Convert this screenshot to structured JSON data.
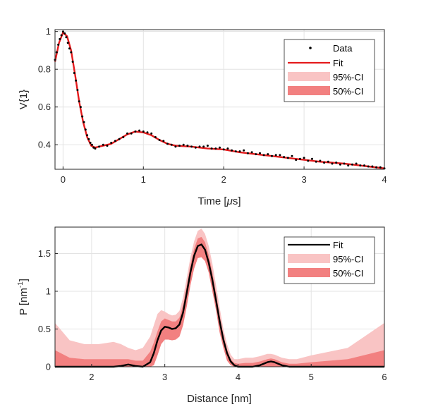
{
  "colors": {
    "fit_top": "#e41a1c",
    "fit_bottom": "#000000",
    "ci95": "#f9c4c4",
    "ci50": "#f28080",
    "data_points": "#000000",
    "grid": "#e3e3e3",
    "axis": "#262626"
  },
  "chart_data": [
    {
      "type": "scatter",
      "xlabel_prefix": "Time [",
      "xlabel_mu": "μ",
      "xlabel_suffix": "s]",
      "ylabel": "V{1}",
      "xlim": [
        -0.1,
        4
      ],
      "ylim": [
        0.27,
        1.01
      ],
      "xticks": [
        "0",
        "1",
        "2",
        "3",
        "4"
      ],
      "yticks": [
        "0.4",
        "0.6",
        "0.8",
        "1"
      ],
      "grid": true,
      "legend_position": "top-right",
      "legend": [
        "Data",
        "Fit",
        "95%-CI",
        "50%-CI"
      ],
      "fit": {
        "x": [
          -0.1,
          -0.05,
          0.0,
          0.05,
          0.1,
          0.15,
          0.2,
          0.25,
          0.3,
          0.35,
          0.4,
          0.5,
          0.6,
          0.7,
          0.8,
          0.9,
          1.0,
          1.1,
          1.2,
          1.3,
          1.4,
          1.6,
          1.8,
          2.0,
          2.2,
          2.5,
          2.8,
          3.0,
          3.2,
          3.5,
          3.8,
          4.0
        ],
        "y": [
          0.84,
          0.94,
          0.995,
          0.975,
          0.9,
          0.77,
          0.63,
          0.52,
          0.44,
          0.395,
          0.385,
          0.395,
          0.405,
          0.43,
          0.455,
          0.47,
          0.465,
          0.45,
          0.425,
          0.405,
          0.395,
          0.39,
          0.38,
          0.375,
          0.36,
          0.345,
          0.33,
          0.32,
          0.31,
          0.3,
          0.285,
          0.275
        ]
      },
      "data": {
        "x": [
          -0.1,
          -0.08,
          -0.06,
          -0.04,
          -0.02,
          0.0,
          0.02,
          0.04,
          0.06,
          0.08,
          0.1,
          0.12,
          0.14,
          0.16,
          0.18,
          0.2,
          0.22,
          0.24,
          0.26,
          0.28,
          0.3,
          0.32,
          0.34,
          0.36,
          0.38,
          0.4,
          0.45,
          0.5,
          0.55,
          0.6,
          0.65,
          0.7,
          0.75,
          0.8,
          0.85,
          0.9,
          0.95,
          1.0,
          1.05,
          1.1,
          1.15,
          1.2,
          1.25,
          1.3,
          1.35,
          1.4,
          1.45,
          1.5,
          1.55,
          1.6,
          1.65,
          1.7,
          1.75,
          1.8,
          1.85,
          1.9,
          1.95,
          2.0,
          2.05,
          2.1,
          2.15,
          2.2,
          2.25,
          2.3,
          2.35,
          2.4,
          2.45,
          2.5,
          2.55,
          2.6,
          2.65,
          2.7,
          2.75,
          2.8,
          2.85,
          2.9,
          2.95,
          3.0,
          3.05,
          3.1,
          3.15,
          3.2,
          3.25,
          3.3,
          3.35,
          3.4,
          3.45,
          3.5,
          3.55,
          3.6,
          3.65,
          3.7,
          3.75,
          3.8,
          3.85,
          3.9,
          3.95,
          4.0
        ],
        "y": [
          0.85,
          0.89,
          0.93,
          0.96,
          0.98,
          1.0,
          0.99,
          0.97,
          0.94,
          0.91,
          0.89,
          0.84,
          0.78,
          0.74,
          0.69,
          0.63,
          0.6,
          0.55,
          0.52,
          0.48,
          0.45,
          0.43,
          0.41,
          0.4,
          0.385,
          0.38,
          0.39,
          0.4,
          0.395,
          0.41,
          0.42,
          0.43,
          0.44,
          0.46,
          0.46,
          0.47,
          0.475,
          0.47,
          0.465,
          0.46,
          0.44,
          0.425,
          0.42,
          0.405,
          0.4,
          0.39,
          0.395,
          0.4,
          0.395,
          0.39,
          0.385,
          0.39,
          0.39,
          0.395,
          0.38,
          0.38,
          0.385,
          0.375,
          0.38,
          0.37,
          0.365,
          0.365,
          0.37,
          0.355,
          0.36,
          0.35,
          0.355,
          0.345,
          0.35,
          0.34,
          0.345,
          0.345,
          0.335,
          0.33,
          0.34,
          0.32,
          0.325,
          0.33,
          0.315,
          0.325,
          0.31,
          0.315,
          0.305,
          0.31,
          0.3,
          0.305,
          0.295,
          0.3,
          0.29,
          0.295,
          0.3,
          0.29,
          0.29,
          0.285,
          0.285,
          0.28,
          0.28,
          0.275
        ]
      }
    },
    {
      "type": "line",
      "xlabel": "Distance [nm]",
      "ylabel_main": "P [nm",
      "ylabel_sup": "-1",
      "ylabel_end": "]",
      "xlim": [
        1.5,
        6
      ],
      "ylim": [
        0,
        1.85
      ],
      "xticks": [
        "2",
        "3",
        "4",
        "5",
        "6"
      ],
      "yticks": [
        "0",
        "0.5",
        "1",
        "1.5"
      ],
      "grid": true,
      "legend_position": "top-right",
      "legend": [
        "Fit",
        "95%-CI",
        "50%-CI"
      ],
      "fit": {
        "x": [
          1.5,
          1.7,
          1.9,
          2.1,
          2.3,
          2.4,
          2.5,
          2.6,
          2.7,
          2.8,
          2.85,
          2.9,
          2.95,
          3.0,
          3.05,
          3.1,
          3.15,
          3.2,
          3.25,
          3.3,
          3.35,
          3.4,
          3.45,
          3.5,
          3.55,
          3.6,
          3.65,
          3.7,
          3.75,
          3.8,
          3.85,
          3.9,
          3.95,
          4.0,
          4.1,
          4.2,
          4.3,
          4.4,
          4.45,
          4.5,
          4.6,
          4.7,
          4.8,
          5.0,
          5.5,
          6.0
        ],
        "y": [
          0.0,
          0.0,
          0.0,
          0.0,
          0.0,
          0.01,
          0.03,
          0.01,
          0.0,
          0.06,
          0.18,
          0.35,
          0.48,
          0.53,
          0.52,
          0.5,
          0.51,
          0.56,
          0.72,
          0.98,
          1.25,
          1.47,
          1.6,
          1.62,
          1.55,
          1.38,
          1.15,
          0.88,
          0.6,
          0.36,
          0.18,
          0.07,
          0.02,
          0.0,
          0.0,
          0.0,
          0.02,
          0.06,
          0.07,
          0.06,
          0.02,
          0.0,
          0.0,
          0.0,
          0.0,
          0.0
        ]
      },
      "ci95_upper": [
        0.58,
        0.35,
        0.3,
        0.3,
        0.33,
        0.3,
        0.25,
        0.22,
        0.25,
        0.4,
        0.55,
        0.7,
        0.75,
        0.73,
        0.7,
        0.68,
        0.69,
        0.74,
        0.92,
        1.18,
        1.45,
        1.66,
        1.8,
        1.83,
        1.76,
        1.6,
        1.37,
        1.08,
        0.78,
        0.5,
        0.3,
        0.16,
        0.1,
        0.1,
        0.12,
        0.12,
        0.14,
        0.17,
        0.17,
        0.16,
        0.12,
        0.1,
        0.1,
        0.15,
        0.25,
        0.58
      ],
      "ci50_upper": [
        0.22,
        0.12,
        0.1,
        0.1,
        0.1,
        0.1,
        0.1,
        0.08,
        0.08,
        0.2,
        0.32,
        0.47,
        0.6,
        0.64,
        0.62,
        0.6,
        0.6,
        0.65,
        0.82,
        1.08,
        1.35,
        1.56,
        1.7,
        1.72,
        1.65,
        1.48,
        1.25,
        0.97,
        0.68,
        0.42,
        0.23,
        0.1,
        0.05,
        0.04,
        0.05,
        0.05,
        0.07,
        0.1,
        0.11,
        0.1,
        0.06,
        0.04,
        0.04,
        0.06,
        0.1,
        0.22
      ],
      "ci_lower": [
        0.0,
        0.0,
        0.0,
        0.0,
        0.0,
        0.0,
        0.0,
        0.0,
        0.0,
        0.0,
        0.02,
        0.15,
        0.3,
        0.36,
        0.36,
        0.35,
        0.36,
        0.4,
        0.55,
        0.8,
        1.08,
        1.3,
        1.44,
        1.45,
        1.4,
        1.25,
        1.0,
        0.75,
        0.45,
        0.25,
        0.08,
        0.02,
        0.0,
        0.0,
        0.0,
        0.0,
        0.0,
        0.0,
        0.0,
        0.0,
        0.0,
        0.0,
        0.0,
        0.0,
        0.0,
        0.0
      ]
    }
  ]
}
